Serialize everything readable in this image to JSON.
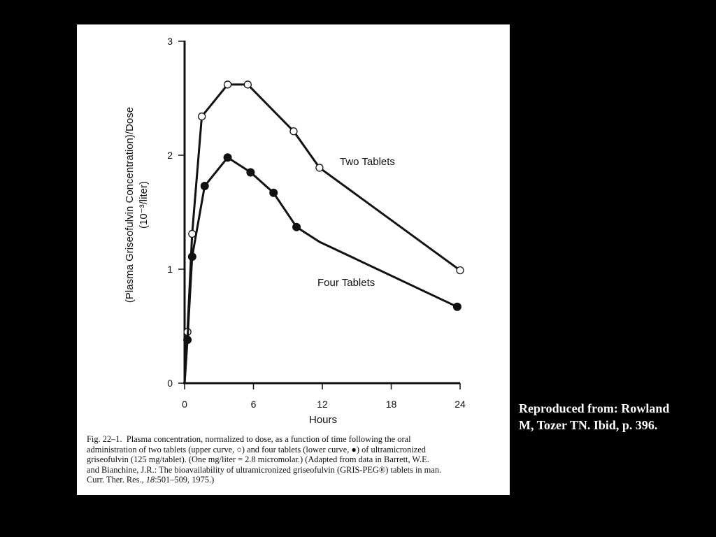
{
  "chart_data": {
    "type": "line",
    "xlabel": "Hours",
    "ylabel": "(Plasma Griseofulvin Concentration)/Dose",
    "ylabel_unit": "(10⁻³/liter)",
    "xlim": [
      0,
      24
    ],
    "ylim": [
      0,
      3
    ],
    "x_ticks": [
      0,
      6,
      12,
      18,
      24
    ],
    "y_ticks": [
      0,
      1,
      2,
      3
    ],
    "grid": false,
    "series": [
      {
        "name": "Two Tablets",
        "marker": "open-circle",
        "x": [
          0,
          0.25,
          0.66,
          1.5,
          3.75,
          5.5,
          9.5,
          11.75,
          24
        ],
        "y": [
          0,
          0.45,
          1.31,
          2.34,
          2.62,
          2.62,
          2.21,
          1.89,
          0.99
        ],
        "marker_points": [
          1,
          2,
          3,
          4,
          5,
          6,
          7,
          8
        ]
      },
      {
        "name": "Four Tablets",
        "marker": "filled-circle",
        "x": [
          0,
          0.25,
          0.66,
          1.75,
          3.75,
          5.75,
          7.75,
          9.75,
          11.75,
          23.75
        ],
        "y": [
          0,
          0.38,
          1.11,
          1.73,
          1.98,
          1.85,
          1.67,
          1.37,
          1.24,
          0.67
        ],
        "marker_points": [
          1,
          2,
          3,
          4,
          5,
          6,
          7,
          9
        ]
      }
    ]
  },
  "caption": {
    "fig_label": "Fig. 22–1.",
    "lines": [
      "Plasma concentration, normalized to dose, as a function of time following the oral",
      "administration of two tablets (upper curve, ○) and four tablets (lower curve, ●) of ultramicronized",
      "griseofulvin (125 mg/tablet). (One mg/liter = 2.8 micromolar.) (Adapted from data in Barrett, W.E.",
      "and Bianchine, J.R.: The bioavailability of ultramicronized griseofulvin (GRIS-PEG®) tablets in man.",
      "Curr. Ther. Res.,"
    ],
    "citation_volume": "18",
    "citation_rest": ":501–509, 1975.)"
  },
  "credit": {
    "line1": "Reproduced from: Rowland",
    "line2": "M, Tozer TN. Ibid, p. 396."
  }
}
